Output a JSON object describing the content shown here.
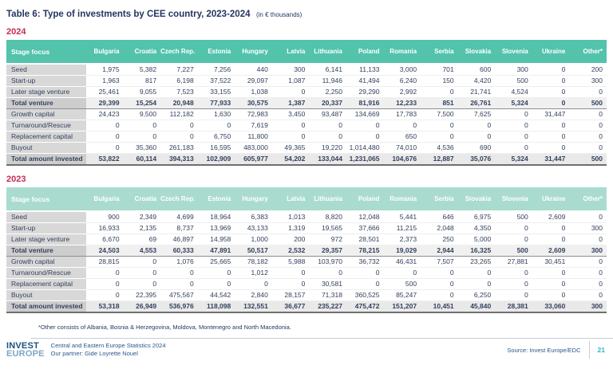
{
  "page": {
    "title": "Table 6: Type of investments by CEE country, 2023-2024",
    "title_suffix": "(in € thousands)",
    "footnote": "*Other consists of Albania, Bosnia & Herzegovina, Moldova, Montenegro and North Macedonia.",
    "colors": {
      "header_teal_2024": "#53C3AB",
      "header_teal_2023": "#A9DCCF",
      "year_label_red": "#C42B55",
      "title_navy": "#24365E",
      "page_number_teal": "#2FB4C7",
      "row_label_gray": "#D8D8D8"
    }
  },
  "tables": [
    {
      "year": "2024",
      "label_header": "Stage focus",
      "columns": [
        "Bulgaria",
        "Croatia",
        "Czech Rep.",
        "Estonia",
        "Hungary",
        "Latvia",
        "Lithuania",
        "Poland",
        "Romania",
        "Serbia",
        "Slovakia",
        "Slovenia",
        "Ukraine",
        "Other*"
      ],
      "rows": [
        {
          "label": "Seed",
          "style": "normal",
          "values": [
            "1,975",
            "5,382",
            "7,227",
            "7,256",
            "440",
            "300",
            "6,141",
            "11,133",
            "3,000",
            "701",
            "600",
            "300",
            "0",
            "200"
          ]
        },
        {
          "label": "Start-up",
          "style": "normal",
          "values": [
            "1,963",
            "817",
            "6,198",
            "37,522",
            "29,097",
            "1,087",
            "11,946",
            "41,494",
            "6,240",
            "150",
            "4,420",
            "500",
            "0",
            "300"
          ]
        },
        {
          "label": "Later stage venture",
          "style": "normal",
          "values": [
            "25,461",
            "9,055",
            "7,523",
            "33,155",
            "1,038",
            "0",
            "2,250",
            "29,290",
            "2,992",
            "0",
            "21,741",
            "4,524",
            "0",
            "0"
          ]
        },
        {
          "label": "Total venture",
          "style": "subtotal",
          "values": [
            "29,399",
            "15,254",
            "20,948",
            "77,933",
            "30,575",
            "1,387",
            "20,337",
            "81,916",
            "12,233",
            "851",
            "26,761",
            "5,324",
            "0",
            "500"
          ]
        },
        {
          "label": "Growth capital",
          "style": "normal",
          "values": [
            "24,423",
            "9,500",
            "112,182",
            "1,630",
            "72,983",
            "3,450",
            "93,487",
            "134,669",
            "17,783",
            "7,500",
            "7,625",
            "0",
            "31,447",
            "0"
          ]
        },
        {
          "label": "Turnaround/Rescue",
          "style": "normal",
          "values": [
            "0",
            "0",
            "0",
            "0",
            "7,619",
            "0",
            "0",
            "0",
            "0",
            "0",
            "0",
            "0",
            "0",
            "0"
          ]
        },
        {
          "label": "Replacement capital",
          "style": "normal",
          "values": [
            "0",
            "0",
            "0",
            "6,750",
            "11,800",
            "0",
            "0",
            "0",
            "650",
            "0",
            "0",
            "0",
            "0",
            "0"
          ]
        },
        {
          "label": "Buyout",
          "style": "normal",
          "values": [
            "0",
            "35,360",
            "261,183",
            "16,595",
            "483,000",
            "49,365",
            "19,220",
            "1,014,480",
            "74,010",
            "4,536",
            "690",
            "0",
            "0",
            "0"
          ]
        },
        {
          "label": "Total amount invested",
          "style": "total",
          "values": [
            "53,822",
            "60,114",
            "394,313",
            "102,909",
            "605,977",
            "54,202",
            "133,044",
            "1,231,065",
            "104,676",
            "12,887",
            "35,076",
            "5,324",
            "31,447",
            "500"
          ]
        }
      ]
    },
    {
      "year": "2023",
      "label_header": "Stage focus",
      "columns": [
        "Bulgaria",
        "Croatia",
        "Czech Rep.",
        "Estonia",
        "Hungary",
        "Latvia",
        "Lithuania",
        "Poland",
        "Romania",
        "Serbia",
        "Slovakia",
        "Slovenia",
        "Ukraine",
        "Other*"
      ],
      "rows": [
        {
          "label": "Seed",
          "style": "normal",
          "values": [
            "900",
            "2,349",
            "4,699",
            "18,964",
            "6,383",
            "1,013",
            "8,820",
            "12,048",
            "5,441",
            "646",
            "6,975",
            "500",
            "2,609",
            "0"
          ]
        },
        {
          "label": "Start-up",
          "style": "normal",
          "values": [
            "16,933",
            "2,135",
            "8,737",
            "13,969",
            "43,133",
            "1,319",
            "19,565",
            "37,666",
            "11,215",
            "2,048",
            "4,350",
            "0",
            "0",
            "300"
          ]
        },
        {
          "label": "Later stage venture",
          "style": "normal",
          "values": [
            "6,670",
            "69",
            "46,897",
            "14,958",
            "1,000",
            "200",
            "972",
            "28,501",
            "2,373",
            "250",
            "5,000",
            "0",
            "0",
            "0"
          ]
        },
        {
          "label": "Total venture",
          "style": "subtotal",
          "values": [
            "24,503",
            "4,553",
            "60,333",
            "47,891",
            "50,517",
            "2,532",
            "29,357",
            "78,215",
            "19,029",
            "2,944",
            "16,325",
            "500",
            "2,609",
            "300"
          ]
        },
        {
          "label": "Growth capital",
          "style": "normal",
          "values": [
            "28,815",
            "0",
            "1,076",
            "25,665",
            "78,182",
            "5,988",
            "103,970",
            "36,732",
            "46,431",
            "7,507",
            "23,265",
            "27,881",
            "30,451",
            "0"
          ]
        },
        {
          "label": "Turnaround/Rescue",
          "style": "normal",
          "values": [
            "0",
            "0",
            "0",
            "0",
            "1,012",
            "0",
            "0",
            "0",
            "0",
            "0",
            "0",
            "0",
            "0",
            "0"
          ]
        },
        {
          "label": "Replacement capital",
          "style": "normal",
          "values": [
            "0",
            "0",
            "0",
            "0",
            "0",
            "0",
            "30,581",
            "0",
            "500",
            "0",
            "0",
            "0",
            "0",
            "0"
          ]
        },
        {
          "label": "Buyout",
          "style": "normal",
          "values": [
            "0",
            "22,395",
            "475,567",
            "44,542",
            "2,840",
            "28,157",
            "71,318",
            "360,525",
            "85,247",
            "0",
            "6,250",
            "0",
            "0",
            "0"
          ]
        },
        {
          "label": "Total amount invested",
          "style": "total",
          "values": [
            "53,318",
            "26,949",
            "536,976",
            "118,098",
            "132,551",
            "36,677",
            "235,227",
            "475,472",
            "151,207",
            "10,451",
            "45,840",
            "28,381",
            "33,060",
            "300"
          ]
        }
      ]
    }
  ],
  "footer": {
    "logo_line1": "INVEST",
    "logo_line2": "EUROPE",
    "publication": "Central and Eastern Europe Statistics 2024",
    "partner": "Our partner: Gide Loyrette Nouel",
    "source": "Source: Invest Europe/EDC",
    "page_number": "21"
  }
}
